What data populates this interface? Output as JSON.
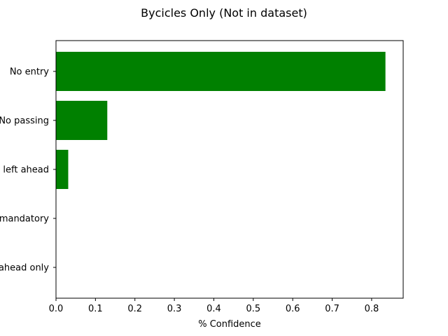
{
  "chart_data": {
    "type": "bar",
    "orientation": "horizontal",
    "title": "Bycicles Only (Not in dataset)",
    "xlabel": "% Confidence",
    "ylabel": "",
    "xlim": [
      0,
      0.88
    ],
    "xticks": [
      0.0,
      0.1,
      0.2,
      0.3,
      0.4,
      0.5,
      0.6,
      0.7,
      0.8
    ],
    "xtick_labels": [
      "0.0",
      "0.1",
      "0.2",
      "0.3",
      "0.4",
      "0.5",
      "0.6",
      "0.7",
      "0.8"
    ],
    "categories": [
      "No entry",
      "No passing",
      "left ahead",
      "mandatory",
      "ahead only"
    ],
    "values": [
      0.835,
      0.13,
      0.031,
      0.0,
      0.0
    ],
    "bar_color": "#008000",
    "grid": false,
    "legend": "none"
  }
}
